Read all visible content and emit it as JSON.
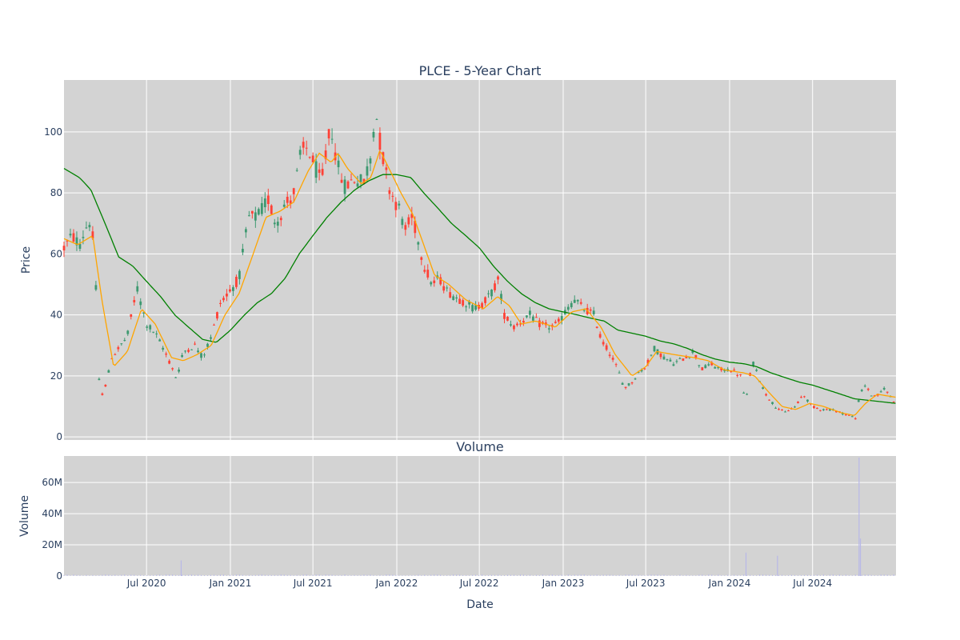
{
  "chart_data": {
    "type": "candlestick",
    "title": "PLCE - 5-Year Chart",
    "subplot_title": "Volume",
    "price_axis": {
      "label": "Price",
      "ylim": [
        -1,
        117
      ],
      "ticks": [
        0,
        20,
        40,
        60,
        80,
        100
      ]
    },
    "volume_axis": {
      "label": "Volume",
      "ylim": [
        0,
        77000000
      ],
      "ticks": [
        0,
        20000000,
        40000000,
        60000000
      ],
      "tick_labels": [
        "0",
        "20M",
        "40M",
        "60M"
      ]
    },
    "x_axis": {
      "label": "Date",
      "range": [
        "2020-01-02",
        "2024-12-31"
      ],
      "ticks": [
        "2020-07-01",
        "2021-01-01",
        "2021-07-01",
        "2022-01-01",
        "2022-07-01",
        "2023-01-01",
        "2023-07-01",
        "2024-01-01",
        "2024-07-01"
      ],
      "tick_labels": [
        "Jul 2020",
        "Jan 2021",
        "Jul 2021",
        "Jan 2022",
        "Jul 2022",
        "Jan 2023",
        "Jul 2023",
        "Jan 2024",
        "Jul 2024"
      ]
    },
    "colors": {
      "up": "#3d9970",
      "down": "#ff4136",
      "ma_short": "#ffa500",
      "ma_long": "#008000",
      "volume": "#b8b8e8",
      "plot_bg": "#d3d3d3",
      "grid": "#ffffff"
    },
    "price_keypoints": [
      [
        "2020-01-02",
        62
      ],
      [
        "2020-01-20",
        66
      ],
      [
        "2020-02-05",
        63
      ],
      [
        "2020-02-20",
        69
      ],
      [
        "2020-03-01",
        71
      ],
      [
        "2020-03-10",
        58
      ],
      [
        "2020-03-18",
        20
      ],
      [
        "2020-03-23",
        13
      ],
      [
        "2020-04-05",
        18
      ],
      [
        "2020-04-15",
        26
      ],
      [
        "2020-05-01",
        29
      ],
      [
        "2020-05-20",
        33
      ],
      [
        "2020-06-10",
        49
      ],
      [
        "2020-06-20",
        43
      ],
      [
        "2020-07-01",
        37
      ],
      [
        "2020-07-20",
        34
      ],
      [
        "2020-08-10",
        28
      ],
      [
        "2020-08-25",
        23
      ],
      [
        "2020-09-05",
        19
      ],
      [
        "2020-09-20",
        28
      ],
      [
        "2020-10-15",
        30
      ],
      [
        "2020-11-01",
        26
      ],
      [
        "2020-11-20",
        33
      ],
      [
        "2020-12-10",
        44
      ],
      [
        "2020-12-31",
        48
      ],
      [
        "2021-01-20",
        52
      ],
      [
        "2021-02-10",
        72
      ],
      [
        "2021-03-01",
        72
      ],
      [
        "2021-03-25",
        78
      ],
      [
        "2021-04-10",
        70
      ],
      [
        "2021-05-01",
        76
      ],
      [
        "2021-05-20",
        80
      ],
      [
        "2021-06-05",
        93
      ],
      [
        "2021-06-20",
        95
      ],
      [
        "2021-07-01",
        90
      ],
      [
        "2021-07-20",
        83
      ],
      [
        "2021-08-01",
        95
      ],
      [
        "2021-08-10",
        102
      ],
      [
        "2021-08-25",
        88
      ],
      [
        "2021-09-10",
        82
      ],
      [
        "2021-10-01",
        85
      ],
      [
        "2021-10-20",
        83
      ],
      [
        "2021-11-05",
        92
      ],
      [
        "2021-11-15",
        108
      ],
      [
        "2021-11-25",
        97
      ],
      [
        "2021-12-10",
        85
      ],
      [
        "2021-12-20",
        80
      ],
      [
        "2022-01-05",
        75
      ],
      [
        "2022-01-20",
        68
      ],
      [
        "2022-02-05",
        72
      ],
      [
        "2022-02-20",
        62
      ],
      [
        "2022-03-05",
        55
      ],
      [
        "2022-03-20",
        50
      ],
      [
        "2022-04-05",
        52
      ],
      [
        "2022-04-20",
        48
      ],
      [
        "2022-05-10",
        46
      ],
      [
        "2022-06-01",
        44
      ],
      [
        "2022-06-20",
        42
      ],
      [
        "2022-07-10",
        44
      ],
      [
        "2022-08-01",
        48
      ],
      [
        "2022-08-10",
        52
      ],
      [
        "2022-08-25",
        40
      ],
      [
        "2022-09-15",
        36
      ],
      [
        "2022-10-01",
        38
      ],
      [
        "2022-10-20",
        40
      ],
      [
        "2022-11-10",
        37
      ],
      [
        "2022-12-01",
        36
      ],
      [
        "2022-12-20",
        37
      ],
      [
        "2023-01-10",
        42
      ],
      [
        "2023-01-25",
        45
      ],
      [
        "2023-02-15",
        42
      ],
      [
        "2023-03-10",
        40
      ],
      [
        "2023-03-25",
        32
      ],
      [
        "2023-04-15",
        27
      ],
      [
        "2023-05-01",
        22
      ],
      [
        "2023-05-15",
        16
      ],
      [
        "2023-06-01",
        18
      ],
      [
        "2023-06-15",
        21
      ],
      [
        "2023-07-01",
        23
      ],
      [
        "2023-07-20",
        29
      ],
      [
        "2023-08-10",
        26
      ],
      [
        "2023-09-01",
        24
      ],
      [
        "2023-09-25",
        26
      ],
      [
        "2023-10-15",
        28
      ],
      [
        "2023-10-31",
        22
      ],
      [
        "2023-11-20",
        24
      ],
      [
        "2023-12-10",
        22
      ],
      [
        "2024-01-05",
        22
      ],
      [
        "2024-01-25",
        20
      ],
      [
        "2024-02-05",
        11
      ],
      [
        "2024-02-20",
        25
      ],
      [
        "2024-03-01",
        21
      ],
      [
        "2024-03-20",
        14
      ],
      [
        "2024-04-10",
        10
      ],
      [
        "2024-05-01",
        8
      ],
      [
        "2024-05-25",
        10
      ],
      [
        "2024-06-10",
        14
      ],
      [
        "2024-06-30",
        10
      ],
      [
        "2024-07-20",
        9
      ],
      [
        "2024-08-10",
        9
      ],
      [
        "2024-09-01",
        8
      ],
      [
        "2024-09-20",
        7
      ],
      [
        "2024-10-05",
        6
      ],
      [
        "2024-10-12",
        14
      ],
      [
        "2024-10-25",
        17
      ],
      [
        "2024-11-10",
        13
      ],
      [
        "2024-11-25",
        14
      ],
      [
        "2024-12-05",
        16
      ],
      [
        "2024-12-20",
        13
      ],
      [
        "2024-12-31",
        11
      ]
    ],
    "ma_short": [
      [
        "2020-01-02",
        65
      ],
      [
        "2020-02-01",
        63
      ],
      [
        "2020-03-05",
        66
      ],
      [
        "2020-03-25",
        45
      ],
      [
        "2020-04-20",
        23
      ],
      [
        "2020-05-20",
        28
      ],
      [
        "2020-06-20",
        42
      ],
      [
        "2020-07-20",
        37
      ],
      [
        "2020-08-25",
        26
      ],
      [
        "2020-09-20",
        25
      ],
      [
        "2020-10-20",
        27
      ],
      [
        "2020-11-20",
        30
      ],
      [
        "2020-12-20",
        40
      ],
      [
        "2021-01-20",
        47
      ],
      [
        "2021-02-20",
        60
      ],
      [
        "2021-03-20",
        72
      ],
      [
        "2021-04-20",
        74
      ],
      [
        "2021-05-20",
        77
      ],
      [
        "2021-06-20",
        87
      ],
      [
        "2021-07-15",
        93
      ],
      [
        "2021-08-10",
        90
      ],
      [
        "2021-08-25",
        93
      ],
      [
        "2021-09-15",
        88
      ],
      [
        "2021-10-15",
        83
      ],
      [
        "2021-11-05",
        85
      ],
      [
        "2021-11-25",
        94
      ],
      [
        "2021-12-15",
        88
      ],
      [
        "2022-01-10",
        80
      ],
      [
        "2022-02-05",
        73
      ],
      [
        "2022-03-01",
        63
      ],
      [
        "2022-03-25",
        53
      ],
      [
        "2022-04-25",
        50
      ],
      [
        "2022-06-01",
        45
      ],
      [
        "2022-07-10",
        42
      ],
      [
        "2022-08-10",
        46
      ],
      [
        "2022-09-05",
        43
      ],
      [
        "2022-10-01",
        37
      ],
      [
        "2022-11-01",
        38
      ],
      [
        "2022-12-15",
        36
      ],
      [
        "2023-01-20",
        41
      ],
      [
        "2023-02-20",
        42
      ],
      [
        "2023-03-25",
        36
      ],
      [
        "2023-04-25",
        27
      ],
      [
        "2023-06-01",
        20
      ],
      [
        "2023-07-01",
        23
      ],
      [
        "2023-07-25",
        28
      ],
      [
        "2023-09-01",
        27
      ],
      [
        "2023-10-15",
        26
      ],
      [
        "2023-11-15",
        25
      ],
      [
        "2023-12-20",
        22
      ],
      [
        "2024-02-01",
        21
      ],
      [
        "2024-02-25",
        20
      ],
      [
        "2024-03-25",
        15
      ],
      [
        "2024-04-25",
        10
      ],
      [
        "2024-05-25",
        9
      ],
      [
        "2024-06-25",
        11
      ],
      [
        "2024-07-25",
        10
      ],
      [
        "2024-09-01",
        8
      ],
      [
        "2024-10-01",
        7
      ],
      [
        "2024-10-25",
        11
      ],
      [
        "2024-11-20",
        14
      ],
      [
        "2024-12-31",
        13
      ]
    ],
    "ma_long": [
      [
        "2020-01-02",
        88
      ],
      [
        "2020-02-05",
        85
      ],
      [
        "2020-03-01",
        81
      ],
      [
        "2020-04-01",
        70
      ],
      [
        "2020-05-01",
        59
      ],
      [
        "2020-06-01",
        56
      ],
      [
        "2020-07-01",
        51
      ],
      [
        "2020-08-01",
        46
      ],
      [
        "2020-09-01",
        40
      ],
      [
        "2020-10-01",
        36
      ],
      [
        "2020-11-01",
        32
      ],
      [
        "2020-12-01",
        31
      ],
      [
        "2021-01-01",
        35
      ],
      [
        "2021-02-01",
        40
      ],
      [
        "2021-03-01",
        44
      ],
      [
        "2021-04-01",
        47
      ],
      [
        "2021-05-01",
        52
      ],
      [
        "2021-06-01",
        60
      ],
      [
        "2021-07-01",
        66
      ],
      [
        "2021-08-01",
        72
      ],
      [
        "2021-09-01",
        77
      ],
      [
        "2021-10-01",
        81
      ],
      [
        "2021-11-01",
        84
      ],
      [
        "2021-12-01",
        86
      ],
      [
        "2022-01-01",
        86
      ],
      [
        "2022-02-01",
        85
      ],
      [
        "2022-03-01",
        80
      ],
      [
        "2022-04-01",
        75
      ],
      [
        "2022-05-01",
        70
      ],
      [
        "2022-06-01",
        66
      ],
      [
        "2022-07-01",
        62
      ],
      [
        "2022-08-01",
        56
      ],
      [
        "2022-09-01",
        51
      ],
      [
        "2022-10-01",
        47
      ],
      [
        "2022-11-01",
        44
      ],
      [
        "2022-12-01",
        42
      ],
      [
        "2023-01-01",
        41
      ],
      [
        "2023-02-01",
        40
      ],
      [
        "2023-03-01",
        39
      ],
      [
        "2023-04-01",
        38
      ],
      [
        "2023-05-01",
        35
      ],
      [
        "2023-06-01",
        34
      ],
      [
        "2023-07-01",
        33
      ],
      [
        "2023-08-01",
        31.5
      ],
      [
        "2023-09-01",
        30.5
      ],
      [
        "2023-10-01",
        29
      ],
      [
        "2023-11-01",
        27
      ],
      [
        "2023-12-01",
        25.5
      ],
      [
        "2024-01-01",
        24.5
      ],
      [
        "2024-02-01",
        24
      ],
      [
        "2024-03-01",
        23
      ],
      [
        "2024-04-01",
        21
      ],
      [
        "2024-05-01",
        19.5
      ],
      [
        "2024-06-01",
        18
      ],
      [
        "2024-07-01",
        17
      ],
      [
        "2024-08-01",
        15.5
      ],
      [
        "2024-09-01",
        14
      ],
      [
        "2024-10-01",
        12.5
      ],
      [
        "2024-11-01",
        12
      ],
      [
        "2024-12-01",
        11.5
      ],
      [
        "2024-12-31",
        11
      ]
    ],
    "volume_spikes": [
      [
        "2020-09-15",
        10000000
      ],
      [
        "2024-02-06",
        15000000
      ],
      [
        "2024-04-15",
        13000000
      ],
      [
        "2024-10-11",
        76000000
      ],
      [
        "2024-10-14",
        24000000
      ]
    ],
    "volume_baseline": 700000
  }
}
